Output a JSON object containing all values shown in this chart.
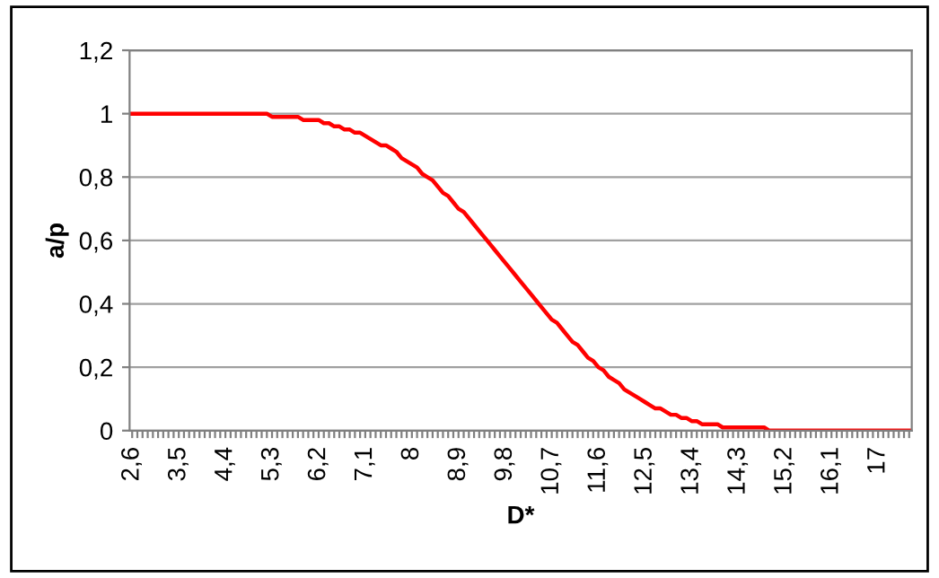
{
  "chart_data": {
    "type": "line",
    "xlabel": "D*",
    "ylabel": "a/p",
    "categories": [
      "2,6",
      null,
      null,
      null,
      null,
      null,
      null,
      null,
      null,
      "3,5",
      null,
      null,
      null,
      null,
      null,
      null,
      null,
      null,
      "4,4",
      null,
      null,
      null,
      null,
      null,
      null,
      null,
      null,
      "5,3",
      null,
      null,
      null,
      null,
      null,
      null,
      null,
      null,
      "6,2",
      null,
      null,
      null,
      null,
      null,
      null,
      null,
      null,
      "7,1",
      null,
      null,
      null,
      null,
      null,
      null,
      null,
      null,
      "8",
      null,
      null,
      null,
      null,
      null,
      null,
      null,
      null,
      "8,9",
      null,
      null,
      null,
      null,
      null,
      null,
      null,
      null,
      "9,8",
      null,
      null,
      null,
      null,
      null,
      null,
      null,
      null,
      "10,7",
      null,
      null,
      null,
      null,
      null,
      null,
      null,
      null,
      "11,6",
      null,
      null,
      null,
      null,
      null,
      null,
      null,
      null,
      "12,5",
      null,
      null,
      null,
      null,
      null,
      null,
      null,
      null,
      "13,4",
      null,
      null,
      null,
      null,
      null,
      null,
      null,
      null,
      "14,3",
      null,
      null,
      null,
      null,
      null,
      null,
      null,
      null,
      "15,2",
      null,
      null,
      null,
      null,
      null,
      null,
      null,
      null,
      "16,1",
      null,
      null,
      null,
      null,
      null,
      null,
      null,
      null,
      "17",
      null,
      null,
      null,
      null,
      null,
      null
    ],
    "series": [
      {
        "color": "#ff0000",
        "values": [
          1,
          1,
          1,
          1,
          1,
          1,
          1,
          1,
          1,
          1,
          1,
          1,
          1,
          1,
          1,
          1,
          1,
          1,
          1,
          1,
          1,
          1,
          1,
          1,
          1,
          1,
          1,
          0.99,
          0.99,
          0.99,
          0.99,
          0.99,
          0.99,
          0.98,
          0.98,
          0.98,
          0.98,
          0.97,
          0.97,
          0.96,
          0.96,
          0.95,
          0.95,
          0.94,
          0.94,
          0.93,
          0.92,
          0.91,
          0.9,
          0.9,
          0.89,
          0.88,
          0.86,
          0.85,
          0.84,
          0.83,
          0.81,
          0.8,
          0.79,
          0.77,
          0.75,
          0.74,
          0.72,
          0.7,
          0.69,
          0.67,
          0.65,
          0.63,
          0.61,
          0.59,
          0.57,
          0.55,
          0.53,
          0.51,
          0.49,
          0.47,
          0.45,
          0.43,
          0.41,
          0.39,
          0.37,
          0.35,
          0.34,
          0.32,
          0.3,
          0.28,
          0.27,
          0.25,
          0.23,
          0.22,
          0.2,
          0.19,
          0.17,
          0.16,
          0.15,
          0.13,
          0.12,
          0.11,
          0.1,
          0.09,
          0.08,
          0.07,
          0.07,
          0.06,
          0.05,
          0.05,
          0.04,
          0.04,
          0.03,
          0.03,
          0.02,
          0.02,
          0.02,
          0.02,
          0.01,
          0.01,
          0.01,
          0.01,
          0.01,
          0.01,
          0.01,
          0.01,
          0.01,
          0,
          0,
          0,
          0,
          0,
          0,
          0,
          0,
          0,
          0,
          0,
          0,
          0,
          0,
          0,
          0,
          0,
          0,
          0,
          0,
          0,
          0,
          0,
          0,
          0,
          0,
          0,
          0
        ]
      }
    ],
    "ylim": [
      0,
      1.2
    ],
    "yticks": [
      0,
      {
        "value": 0.2,
        "label": "0,2"
      },
      {
        "value": 0.4,
        "label": "0,4"
      },
      {
        "value": 0.6,
        "label": "0,6"
      },
      {
        "value": 0.8,
        "label": "0,8"
      },
      1,
      {
        "value": 1.2,
        "label": "1,2"
      }
    ],
    "grid": "y",
    "legend": false,
    "marker": "none",
    "line_style": "solid"
  }
}
